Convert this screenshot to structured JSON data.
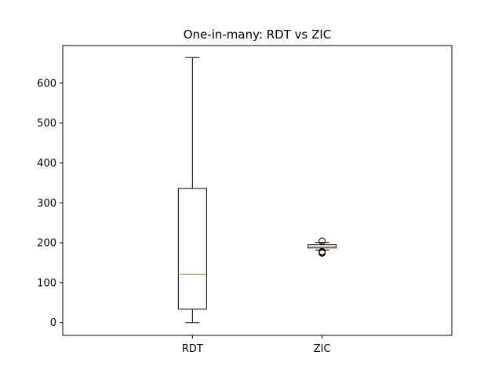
{
  "chart_data": {
    "type": "box",
    "title": "One-in-many: RDT vs ZIC",
    "xlabel": "",
    "ylabel": "",
    "categories": [
      "RDT",
      "ZIC"
    ],
    "ylim": [
      -32,
      694
    ],
    "yticks": [
      0,
      100,
      200,
      300,
      400,
      500,
      600
    ],
    "grid": false,
    "boxes": [
      {
        "name": "RDT",
        "whisker_low": 0,
        "q1": 34,
        "median": 121,
        "q3": 336,
        "whisker_high": 664,
        "fliers": []
      },
      {
        "name": "ZIC",
        "whisker_low": 182,
        "q1": 187,
        "median": 191,
        "q3": 195,
        "whisker_high": 201,
        "fliers": [
          174,
          176,
          178,
          204
        ]
      }
    ],
    "colors": {
      "box": "#000000",
      "median": "#ff7f0e",
      "flier": "#000000"
    }
  }
}
